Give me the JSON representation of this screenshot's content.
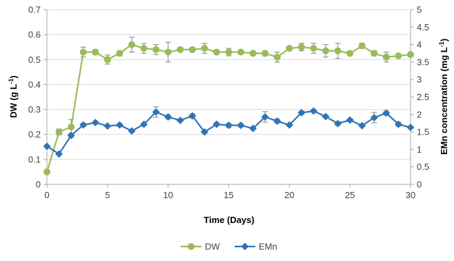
{
  "chart_data": {
    "type": "line",
    "xlabel": "Time (Days)",
    "ylabel_left": "DW (g L-1)",
    "ylabel_right": "EMn concentration (mg L-1)",
    "xlim": [
      0,
      30
    ],
    "xticks": [
      0,
      5,
      10,
      15,
      20,
      25,
      30
    ],
    "ylim_left": [
      0,
      0.7
    ],
    "yticks_left": [
      "0",
      "0.1",
      "0.2",
      "0.3",
      "0.4",
      "0.5",
      "0.6",
      "0.7"
    ],
    "ylim_right": [
      0,
      5
    ],
    "yticks_right": [
      "0",
      "0.5",
      "1",
      "1.5",
      "2",
      "2.5",
      "3",
      "3.5",
      "4",
      "4.5",
      "5"
    ],
    "grid": "horizontal",
    "legend": "bottom-center",
    "series": [
      {
        "name": "DW",
        "axis": "left",
        "color": "#9bbb59",
        "marker": "circle",
        "x": [
          0,
          1,
          2,
          3,
          4,
          5,
          6,
          7,
          8,
          9,
          10,
          11,
          12,
          13,
          14,
          15,
          16,
          17,
          18,
          19,
          20,
          21,
          22,
          23,
          24,
          25,
          26,
          27,
          28,
          29,
          30
        ],
        "y": [
          0.05,
          0.21,
          0.23,
          0.53,
          0.53,
          0.5,
          0.525,
          0.56,
          0.545,
          0.54,
          0.53,
          0.54,
          0.54,
          0.545,
          0.53,
          0.53,
          0.53,
          0.525,
          0.525,
          0.51,
          0.545,
          0.55,
          0.545,
          0.535,
          0.535,
          0.525,
          0.555,
          0.525,
          0.51,
          0.515,
          0.52
        ],
        "err": [
          0,
          0.012,
          0.03,
          0.02,
          0.01,
          0.018,
          0.01,
          0.03,
          0.02,
          0.02,
          0.04,
          0.008,
          0.008,
          0.02,
          0.008,
          0.015,
          0.008,
          0.008,
          0.01,
          0.02,
          0.008,
          0.015,
          0.02,
          0.025,
          0.03,
          0.008,
          0.01,
          0.01,
          0.02,
          0.008,
          0.008
        ]
      },
      {
        "name": "EMn",
        "axis": "right",
        "color": "#2e75b6",
        "marker": "diamond",
        "x": [
          0,
          1,
          2,
          3,
          4,
          5,
          6,
          7,
          8,
          9,
          10,
          11,
          12,
          13,
          14,
          15,
          16,
          17,
          18,
          19,
          20,
          21,
          22,
          23,
          24,
          25,
          26,
          27,
          28,
          29,
          30
        ],
        "y": [
          1.09,
          0.87,
          1.4,
          1.7,
          1.77,
          1.67,
          1.7,
          1.53,
          1.72,
          2.07,
          1.93,
          1.83,
          1.96,
          1.5,
          1.72,
          1.69,
          1.69,
          1.6,
          1.93,
          1.81,
          1.7,
          2.05,
          2.1,
          1.94,
          1.74,
          1.84,
          1.68,
          1.91,
          2.04,
          1.72,
          1.63
        ],
        "err": [
          0,
          0,
          0.06,
          0.05,
          0.03,
          0.02,
          0.04,
          0.03,
          0.03,
          0.15,
          0.06,
          0.03,
          0.06,
          0.04,
          0.05,
          0.06,
          0.05,
          0.03,
          0.15,
          0.06,
          0.03,
          0.05,
          0.04,
          0.03,
          0.05,
          0.04,
          0.03,
          0.15,
          0.06,
          0.06,
          0.03
        ]
      }
    ]
  }
}
